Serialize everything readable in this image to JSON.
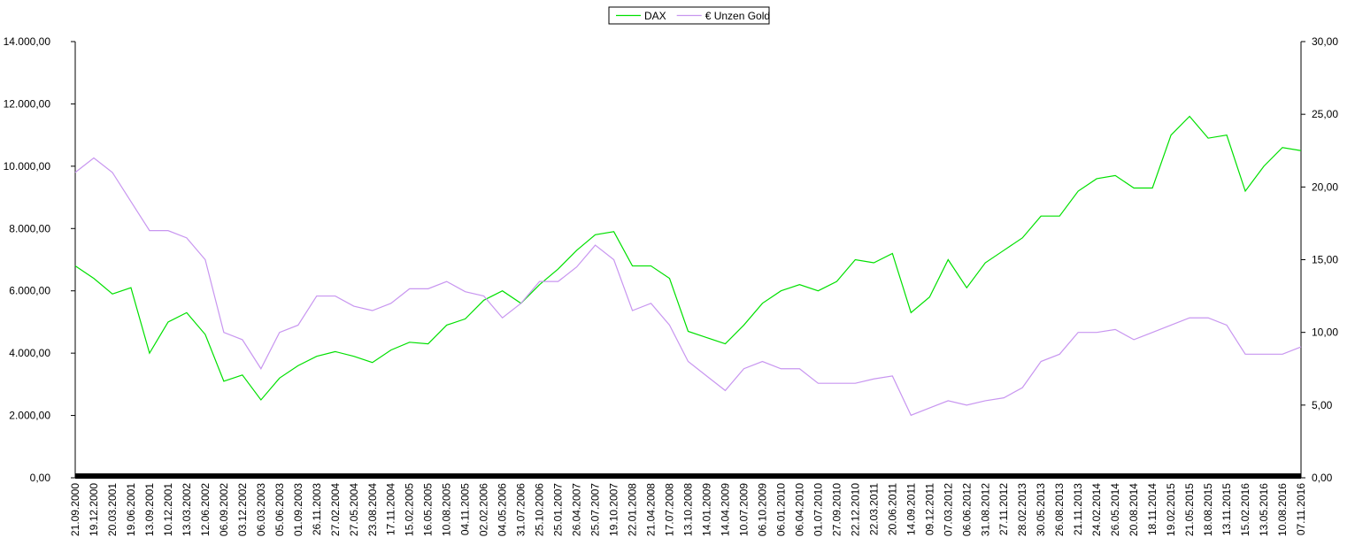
{
  "chart_data": {
    "type": "line",
    "categories": [
      "21.09.2000",
      "19.12.2000",
      "20.03.2001",
      "19.06.2001",
      "13.09.2001",
      "10.12.2001",
      "13.03.2002",
      "12.06.2002",
      "06.09.2002",
      "03.12.2002",
      "06.03.2003",
      "05.06.2003",
      "01.09.2003",
      "26.11.2003",
      "27.02.2004",
      "27.05.2004",
      "23.08.2004",
      "17.11.2004",
      "15.02.2005",
      "16.05.2005",
      "10.08.2005",
      "04.11.2005",
      "02.02.2006",
      "04.05.2006",
      "31.07.2006",
      "25.10.2006",
      "25.01.2007",
      "26.04.2007",
      "25.07.2007",
      "19.10.2007",
      "22.01.2008",
      "21.04.2008",
      "17.07.2008",
      "13.10.2008",
      "14.01.2009",
      "14.04.2009",
      "10.07.2009",
      "06.10.2009",
      "06.01.2010",
      "06.04.2010",
      "01.07.2010",
      "27.09.2010",
      "22.12.2010",
      "22.03.2011",
      "20.06.2011",
      "14.09.2011",
      "09.12.2011",
      "07.03.2012",
      "06.06.2012",
      "31.08.2012",
      "27.11.2012",
      "28.02.2013",
      "30.05.2013",
      "26.08.2013",
      "21.11.2013",
      "24.02.2014",
      "26.05.2014",
      "20.08.2014",
      "18.11.2014",
      "19.02.2015",
      "21.05.2015",
      "18.08.2015",
      "13.11.2015",
      "15.02.2016",
      "13.05.2016",
      "10.08.2016",
      "07.11.2016"
    ],
    "series": [
      {
        "name": "DAX",
        "color": "#00e000",
        "values": [
          6800,
          6400,
          5900,
          6100,
          4000,
          5000,
          5300,
          4600,
          3100,
          3300,
          2500,
          3200,
          3600,
          3900,
          4050,
          3900,
          3700,
          4100,
          4350,
          4300,
          4900,
          5100,
          5700,
          6000,
          5600,
          6200,
          6700,
          7300,
          7800,
          7900,
          6800,
          6800,
          6400,
          4700,
          4500,
          4300,
          4900,
          5600,
          6000,
          6200,
          6000,
          6300,
          7000,
          6900,
          7200,
          5300,
          5800,
          7000,
          6100,
          6900,
          7300,
          7700,
          8400,
          8400,
          9200,
          9600,
          9700,
          9300,
          9300,
          11000,
          11600,
          10900,
          11000,
          9200,
          10000,
          10600,
          10500
        ]
      },
      {
        "name": "€ Unzen Gold",
        "color": "#c896f0",
        "axis": "y2",
        "values": [
          21,
          22,
          21,
          19,
          17,
          17,
          16.5,
          15,
          10,
          9.5,
          7.5,
          10,
          10.5,
          12.5,
          12.5,
          11.8,
          11.5,
          12,
          13,
          13,
          13.5,
          12.8,
          12.5,
          11,
          12,
          13.5,
          13.5,
          14.5,
          16,
          15,
          11.5,
          12,
          10.5,
          8,
          7,
          6,
          7.5,
          8,
          7.5,
          7.5,
          6.5,
          6.5,
          6.5,
          6.8,
          7,
          4.3,
          4.8,
          5.3,
          5,
          5.3,
          5.5,
          6.2,
          8,
          8.5,
          10,
          10,
          10.2,
          9.5,
          10,
          10.5,
          11,
          11,
          10.5,
          8.5,
          8.5,
          8.5,
          9
        ]
      }
    ],
    "ylim": [
      0,
      14000
    ],
    "yticks": [
      {
        "value": 0,
        "label": "0,00"
      },
      {
        "value": 2000,
        "label": "2.000,00"
      },
      {
        "value": 4000,
        "label": "4.000,00"
      },
      {
        "value": 6000,
        "label": "6.000,00"
      },
      {
        "value": 8000,
        "label": "8.000,00"
      },
      {
        "value": 10000,
        "label": "10.000,00"
      },
      {
        "value": 12000,
        "label": "12.000,00"
      },
      {
        "value": 14000,
        "label": "14.000,00"
      }
    ],
    "y2lim": [
      0,
      30
    ],
    "y2ticks": [
      {
        "value": 0,
        "label": "0,00"
      },
      {
        "value": 5,
        "label": "5,00"
      },
      {
        "value": 10,
        "label": "10,00"
      },
      {
        "value": 15,
        "label": "15,00"
      },
      {
        "value": 20,
        "label": "20,00"
      },
      {
        "value": 25,
        "label": "25,00"
      },
      {
        "value": 30,
        "label": "30,00"
      }
    ],
    "legend": "top"
  }
}
